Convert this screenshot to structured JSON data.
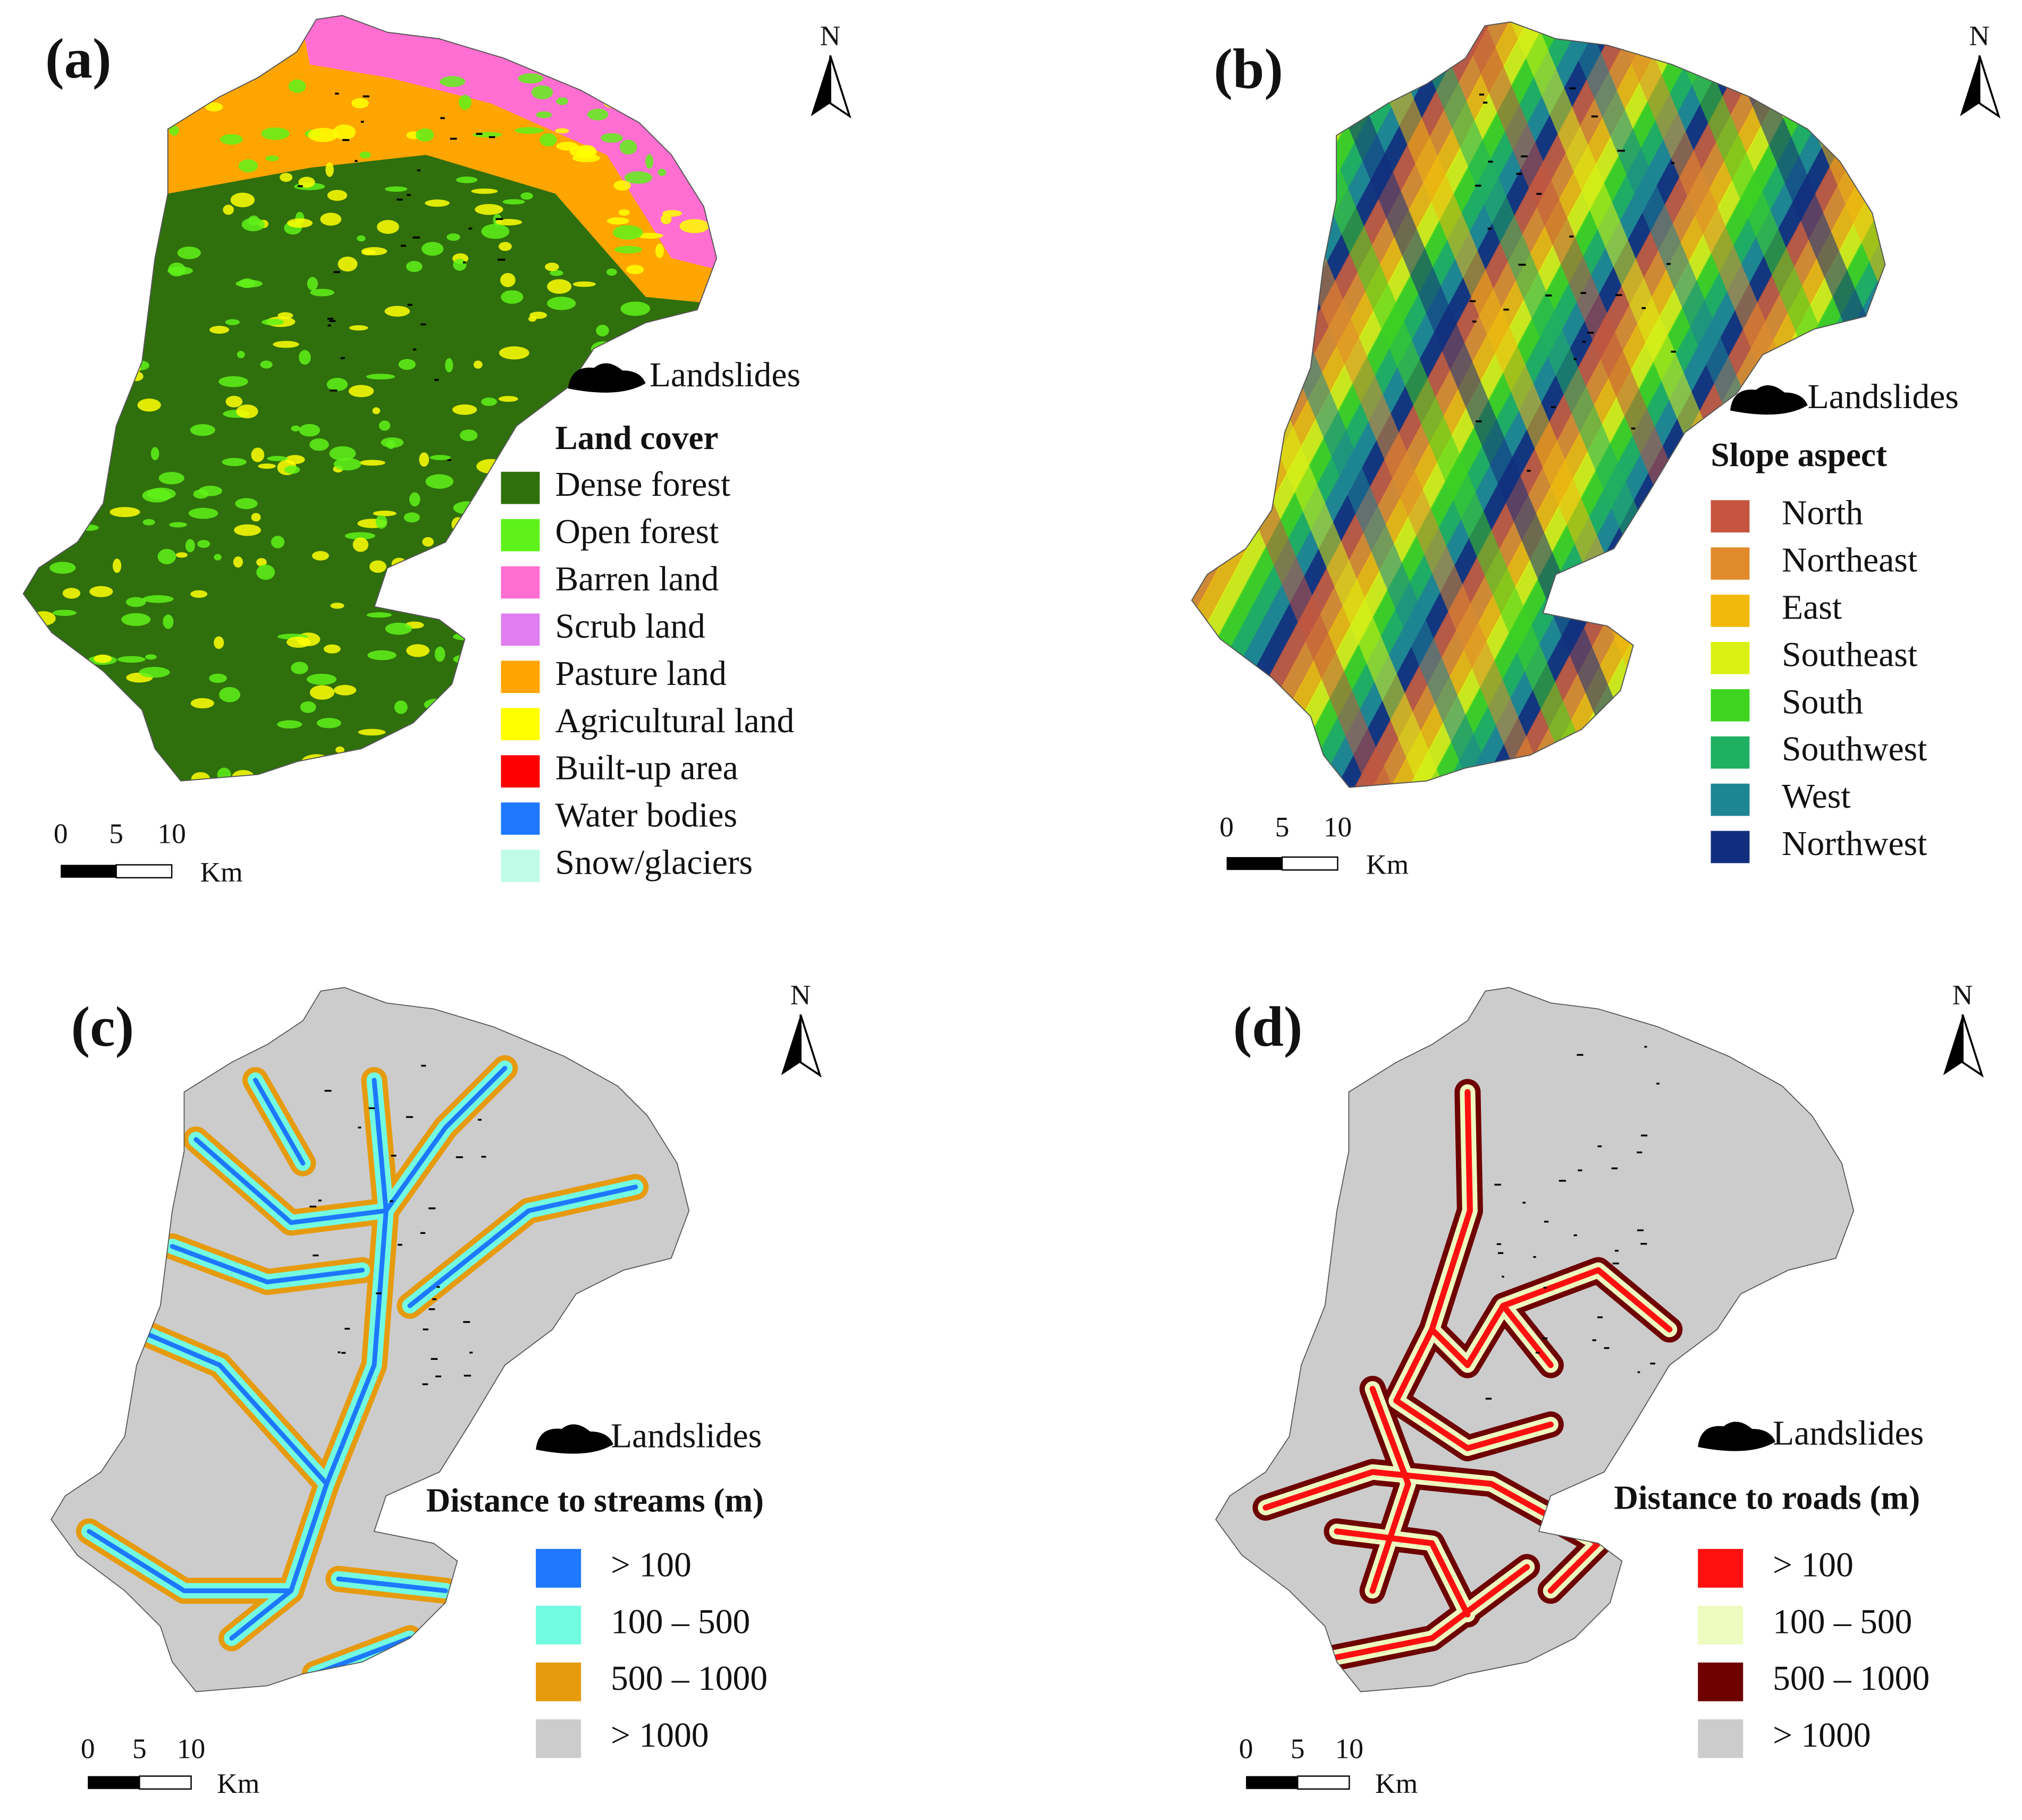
{
  "panels": [
    {
      "label": "(a)",
      "north": "N",
      "landslides": "Landslides",
      "legend_title": "Land cover",
      "legend": [
        {
          "label": "Dense forest",
          "color": "#2f6f0c"
        },
        {
          "label": "Open forest",
          "color": "#5ff21a"
        },
        {
          "label": "Barren land",
          "color": "#ff6ed0"
        },
        {
          "label": "Scrub land",
          "color": "#e07ef0"
        },
        {
          "label": "Pasture land",
          "color": "#ffa500"
        },
        {
          "label": "Agricultural land",
          "color": "#ffff00"
        },
        {
          "label": "Built-up area",
          "color": "#ff0000"
        },
        {
          "label": "Water bodies",
          "color": "#1e78ff"
        },
        {
          "label": "Snow/glaciers",
          "color": "#c0fbe8"
        }
      ],
      "scale": {
        "ticks": [
          "0",
          "5",
          "10"
        ],
        "unit": "Km"
      }
    },
    {
      "label": "(b)",
      "north": "N",
      "landslides": "Landslides",
      "legend_title": "Slope aspect",
      "legend": [
        {
          "label": "North",
          "color": "#c5553e"
        },
        {
          "label": "Northeast",
          "color": "#e08a2c"
        },
        {
          "label": "East",
          "color": "#f2b80c"
        },
        {
          "label": "Southeast",
          "color": "#daf213"
        },
        {
          "label": "South",
          "color": "#3ed41f"
        },
        {
          "label": "Southwest",
          "color": "#1fb061"
        },
        {
          "label": "West",
          "color": "#1e8592"
        },
        {
          "label": "Northwest",
          "color": "#112e7e"
        }
      ],
      "scale": {
        "ticks": [
          "0",
          "5",
          "10"
        ],
        "unit": "Km"
      }
    },
    {
      "label": "(c)",
      "north": "N",
      "landslides": "Landslides",
      "legend_title": "Distance to streams (m)",
      "legend": [
        {
          "label": "> 100",
          "color": "#1e78ff"
        },
        {
          "label": "100 – 500",
          "color": "#72fbe0"
        },
        {
          "label": "500 – 1000",
          "color": "#e69b0f"
        },
        {
          "label": "> 1000",
          "color": "#cccccc"
        }
      ],
      "scale": {
        "ticks": [
          "0",
          "5",
          "10"
        ],
        "unit": "Km"
      }
    },
    {
      "label": "(d)",
      "north": "N",
      "landslides": "Landslides",
      "legend_title": "Distance to roads (m)",
      "legend": [
        {
          "label": "> 100",
          "color": "#ff1010"
        },
        {
          "label": "100 – 500",
          "color": "#eefbc0"
        },
        {
          "label": "500 – 1000",
          "color": "#6e0000"
        },
        {
          "label": "> 1000",
          "color": "#cccccc"
        }
      ],
      "scale": {
        "ticks": [
          "0",
          "5",
          "10"
        ],
        "unit": "Km"
      }
    }
  ]
}
